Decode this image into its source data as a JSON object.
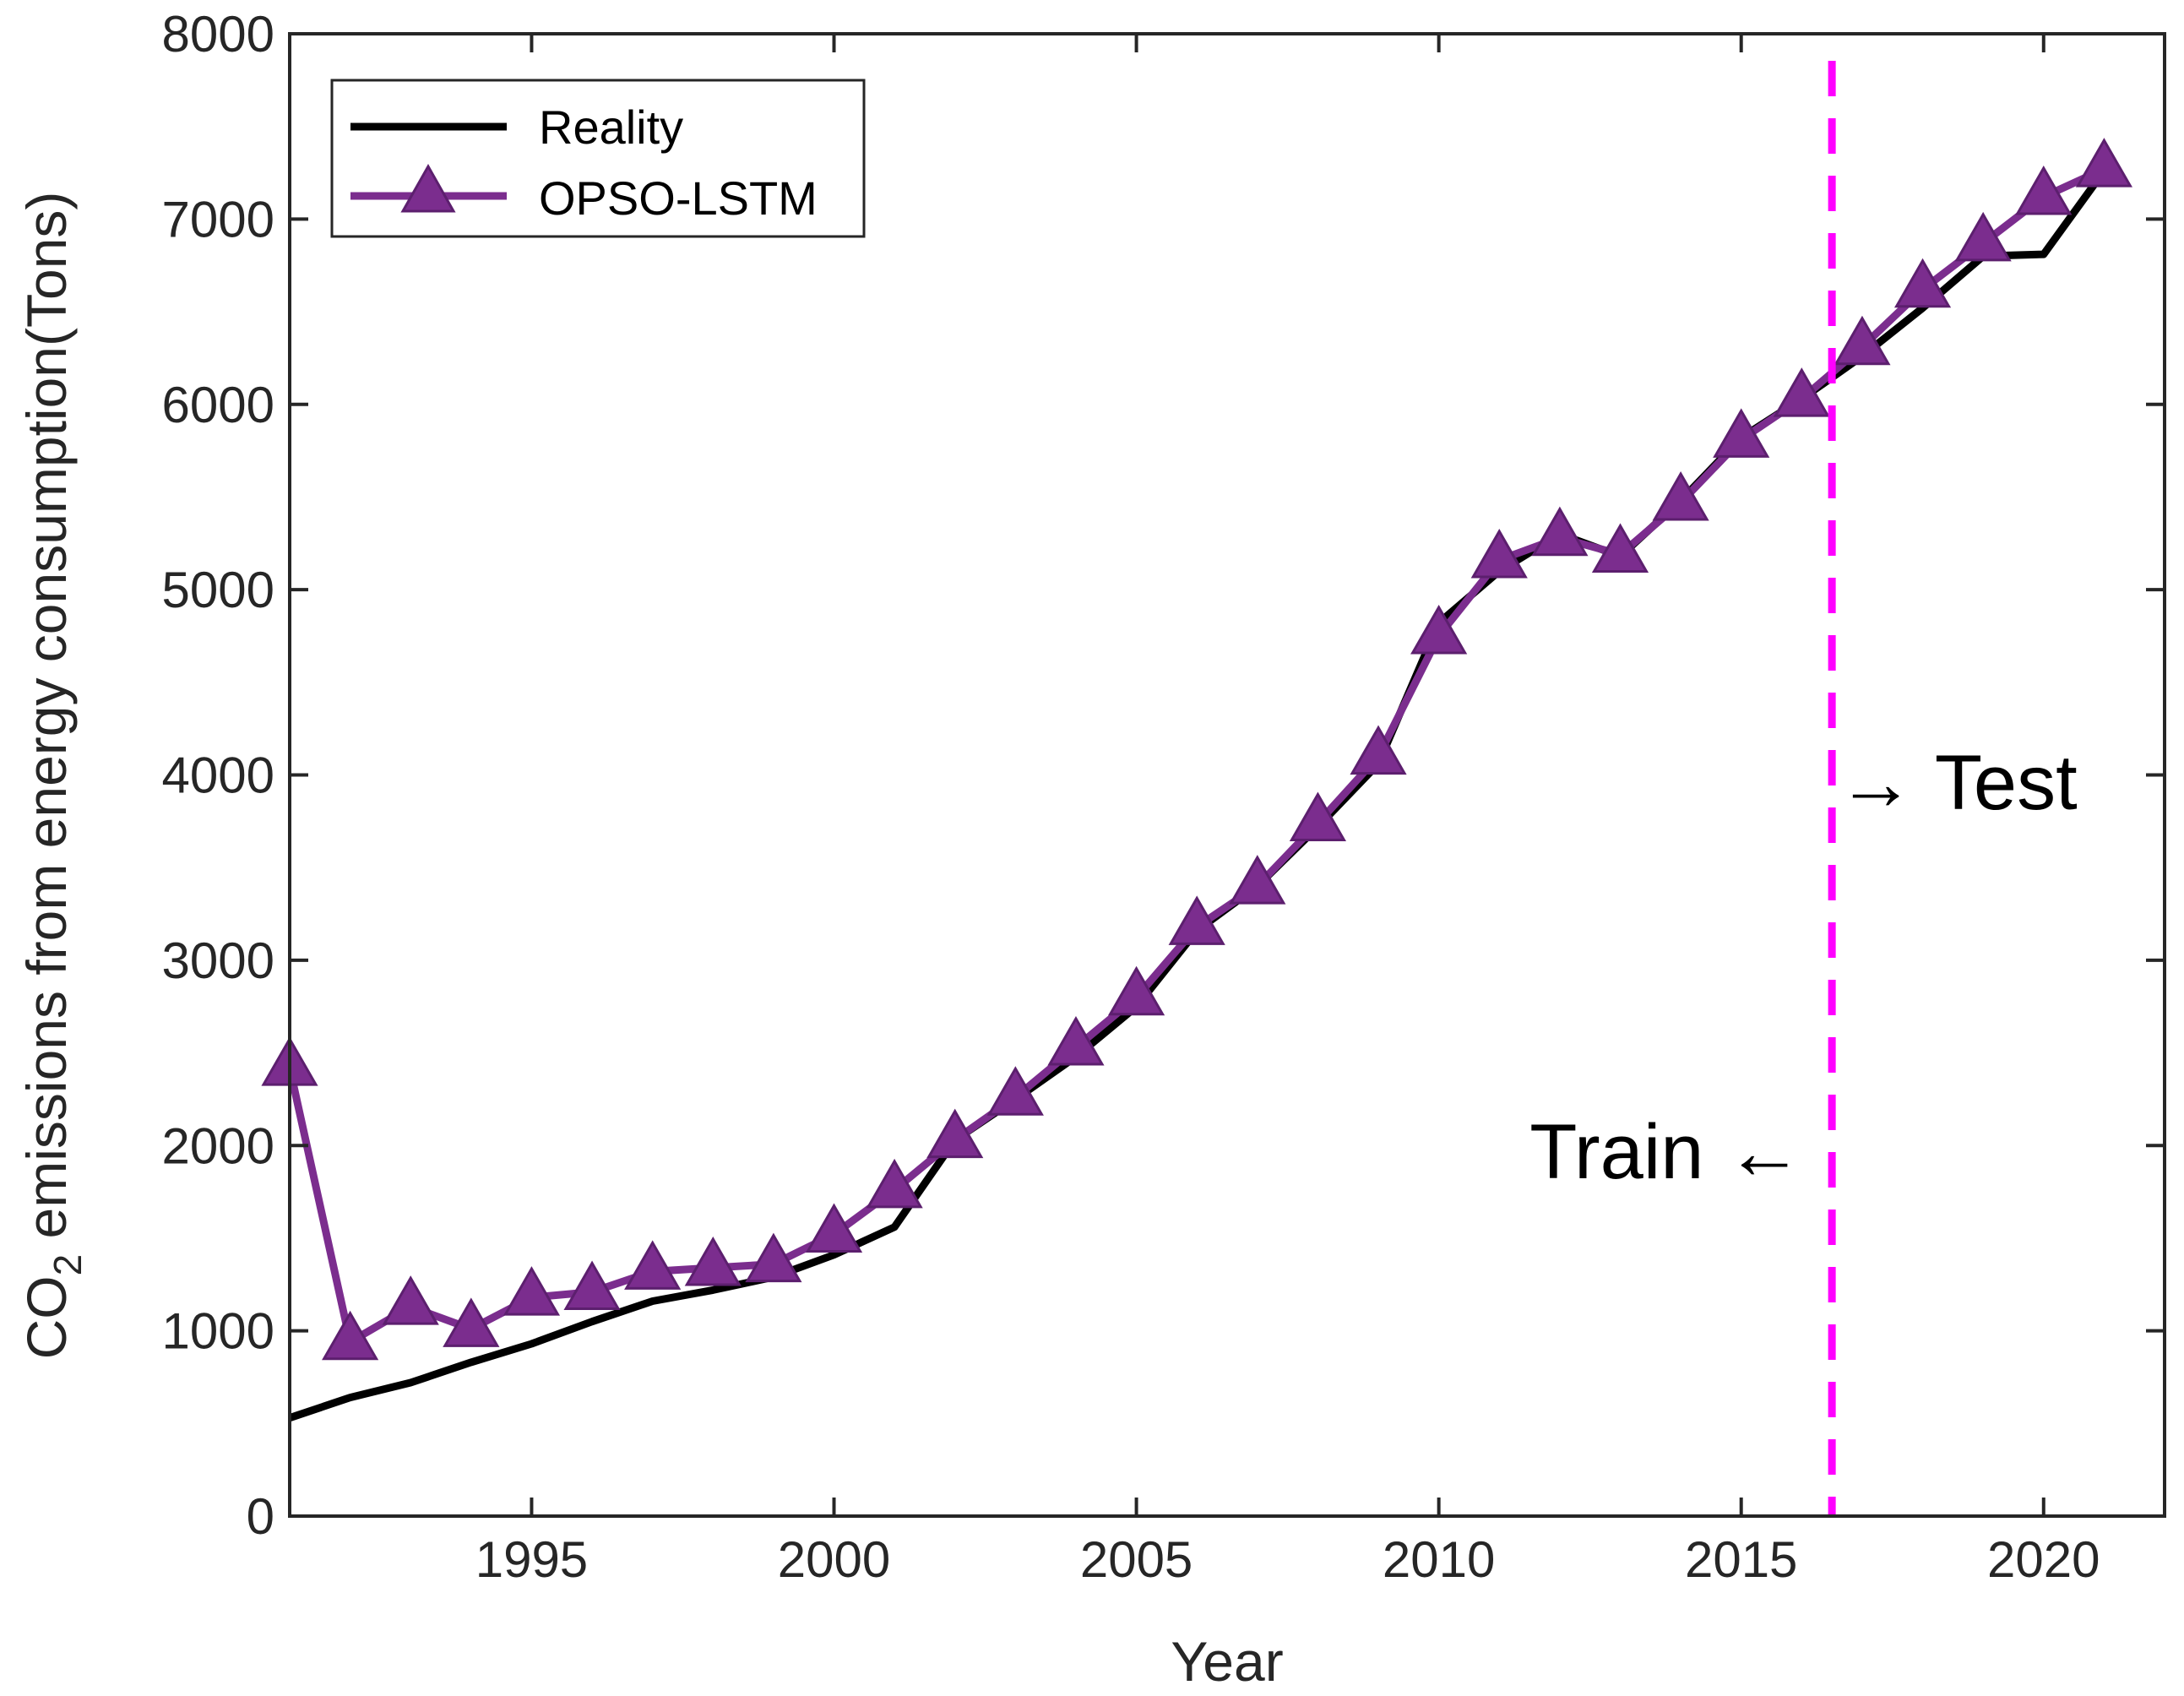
{
  "chart_data": {
    "type": "line",
    "xlabel": "Year",
    "ylabel_main": "CO",
    "ylabel_sub": "2",
    "ylabel_rest": " emissions from energy consumption(Tons)",
    "xlim": [
      1991,
      2022
    ],
    "ylim": [
      0,
      8000
    ],
    "x_ticks": [
      1995,
      2000,
      2005,
      2010,
      2015,
      2020
    ],
    "y_ticks": [
      0,
      1000,
      2000,
      3000,
      4000,
      5000,
      6000,
      7000,
      8000
    ],
    "x": [
      1991,
      1992,
      1993,
      1994,
      1995,
      1996,
      1997,
      1998,
      1999,
      2000,
      2001,
      2002,
      2003,
      2004,
      2005,
      2006,
      2007,
      2008,
      2009,
      2010,
      2011,
      2012,
      2013,
      2014,
      2015,
      2016,
      2017,
      2018,
      2019,
      2020,
      2021
    ],
    "series": [
      {
        "name": "Reality",
        "color": "#000000",
        "marker": "none",
        "values": [
          530,
          640,
          720,
          830,
          930,
          1050,
          1160,
          1220,
          1290,
          1410,
          1560,
          2030,
          2250,
          2480,
          2750,
          3160,
          3400,
          3720,
          4060,
          4820,
          5100,
          5300,
          5180,
          5480,
          5820,
          6030,
          6260,
          6520,
          6800,
          6810,
          7260
        ]
      },
      {
        "name": "OPSO-LSTM",
        "color": "#7B2D8E",
        "marker": "triangle",
        "values": [
          2420,
          940,
          1130,
          1010,
          1180,
          1210,
          1320,
          1340,
          1360,
          1520,
          1760,
          2030,
          2260,
          2530,
          2800,
          3180,
          3400,
          3740,
          4100,
          4750,
          5160,
          5280,
          5190,
          5470,
          5810,
          6030,
          6310,
          6620,
          6870,
          7120,
          7270
        ]
      }
    ],
    "divider": {
      "x": 2016.5,
      "color": "#FF00FF",
      "style": "dashed"
    },
    "annotations": {
      "test": "→ Test",
      "train": "Train ←"
    },
    "legend_position": "top-left"
  }
}
